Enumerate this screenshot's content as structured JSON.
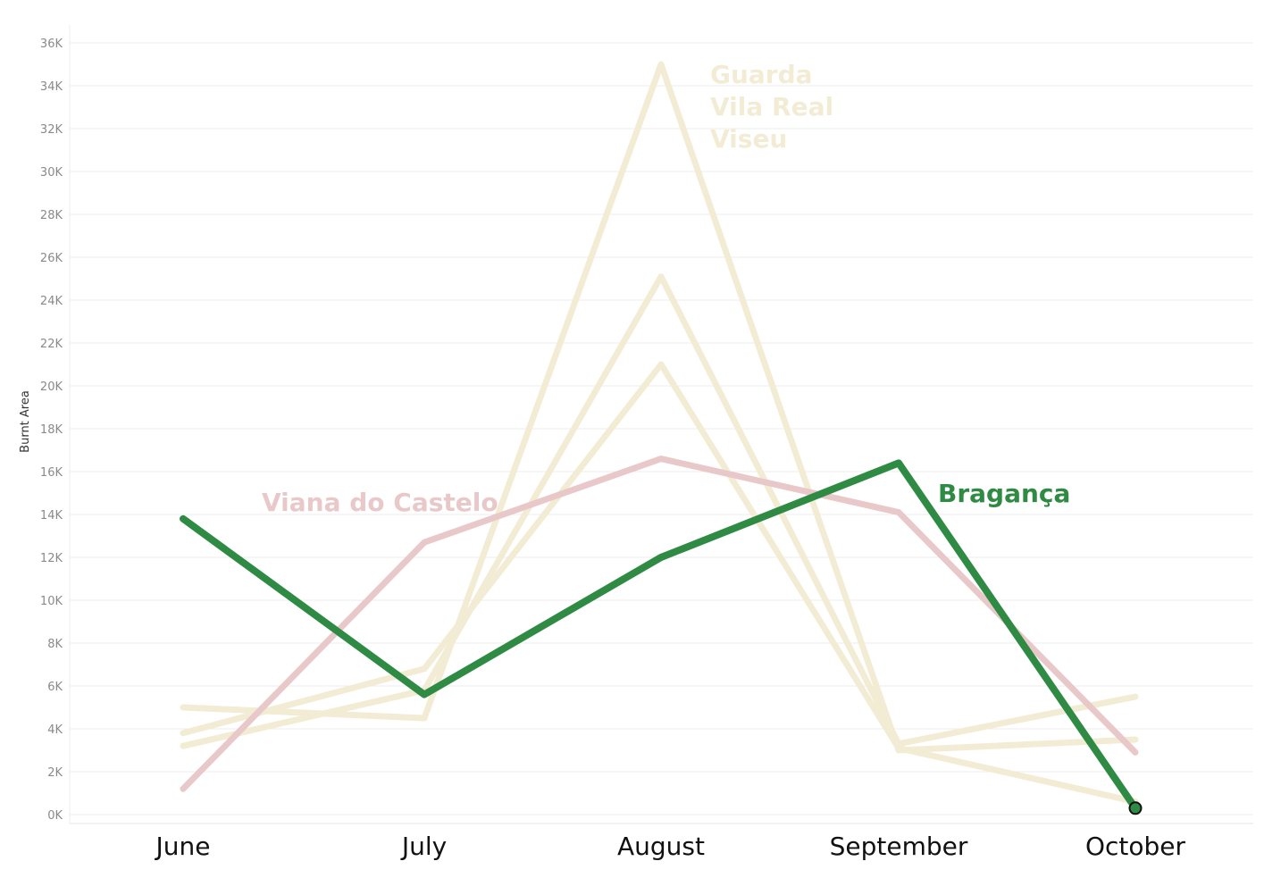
{
  "chart_data": {
    "type": "line",
    "xlabel": "",
    "ylabel": "Burnt Area",
    "ylim": [
      0,
      36000
    ],
    "ytick_values": [
      0,
      2000,
      4000,
      6000,
      8000,
      10000,
      12000,
      14000,
      16000,
      18000,
      20000,
      22000,
      24000,
      26000,
      28000,
      30000,
      32000,
      34000,
      36000
    ],
    "ytick_labels": [
      "0K",
      "2K",
      "4K",
      "6K",
      "8K",
      "10K",
      "12K",
      "14K",
      "16K",
      "18K",
      "20K",
      "22K",
      "24K",
      "26K",
      "28K",
      "30K",
      "32K",
      "34K",
      "36K"
    ],
    "categories": [
      "June",
      "July",
      "August",
      "September",
      "October"
    ],
    "grid": true,
    "series": [
      {
        "name": "Guarda",
        "values": [
          5000,
          4500,
          35000,
          3000,
          3500
        ],
        "color": "#f3ecd5"
      },
      {
        "name": "Vila Real",
        "values": [
          3200,
          5800,
          25100,
          3300,
          5500
        ],
        "color": "#f3ecd5"
      },
      {
        "name": "Viseu",
        "values": [
          3800,
          6800,
          21000,
          3100,
          600
        ],
        "color": "#f3ecd5"
      },
      {
        "name": "Viana do Castelo",
        "values": [
          1200,
          12700,
          16600,
          14100,
          2900
        ],
        "color": "#e9c8ca"
      },
      {
        "name": "Bragança",
        "values": [
          13800,
          5600,
          12000,
          16400,
          300
        ],
        "color": "#2f8b44",
        "highlight": true
      }
    ],
    "annotations": {
      "muted_group": [
        "Guarda",
        "Vila Real",
        "Viseu"
      ],
      "muted_group_color": "#f3ecd5",
      "viana_label": "Viana do Castelo",
      "viana_color": "#e9c8ca",
      "braganca_label": "Bragança",
      "braganca_color": "#2f8b44"
    }
  }
}
